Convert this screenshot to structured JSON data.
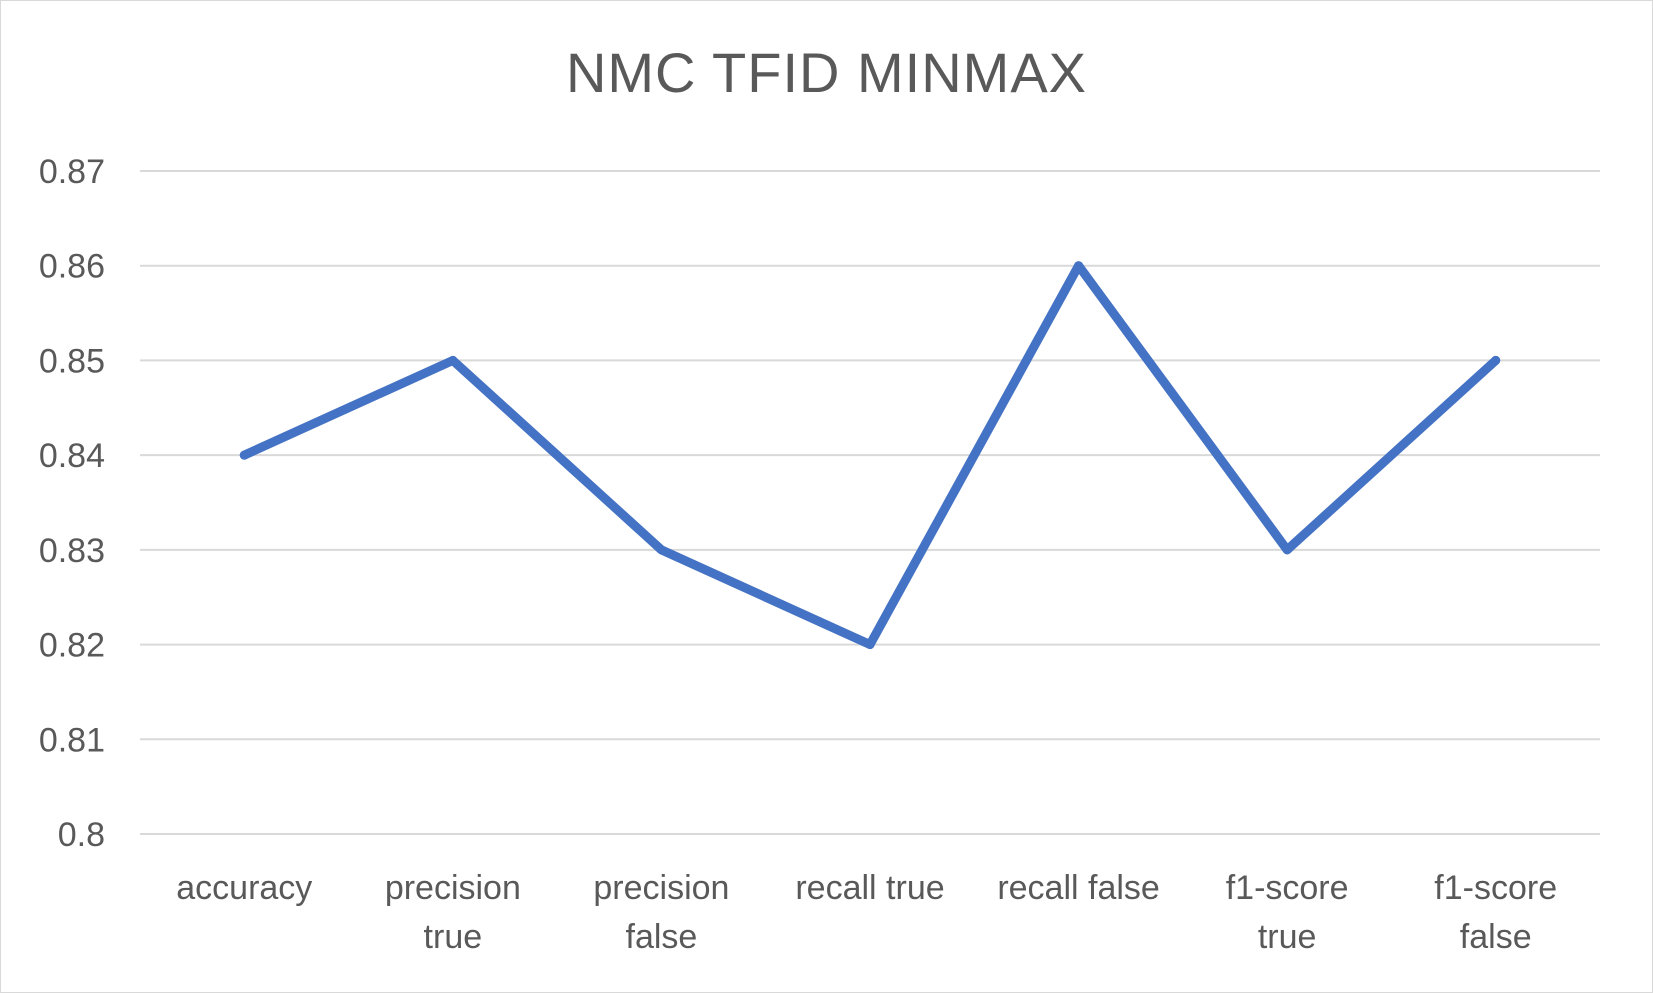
{
  "chart_data": {
    "type": "line",
    "title": "NMC TFID MINMAX",
    "xlabel": "",
    "ylabel": "",
    "categories": [
      [
        "accuracy"
      ],
      [
        "precision",
        "true"
      ],
      [
        "precision",
        "false"
      ],
      [
        "recall true"
      ],
      [
        "recall false"
      ],
      [
        "f1-score",
        "true"
      ],
      [
        "f1-score",
        "false"
      ]
    ],
    "series": [
      {
        "values": [
          0.84,
          0.85,
          0.83,
          0.82,
          0.86,
          0.83,
          0.85
        ],
        "color": "#4472c4"
      }
    ],
    "ylim": [
      0.8,
      0.87
    ],
    "yticks": [
      "0.8",
      "0.81",
      "0.82",
      "0.83",
      "0.84",
      "0.85",
      "0.86",
      "0.87"
    ],
    "grid": true,
    "legend": "none"
  }
}
